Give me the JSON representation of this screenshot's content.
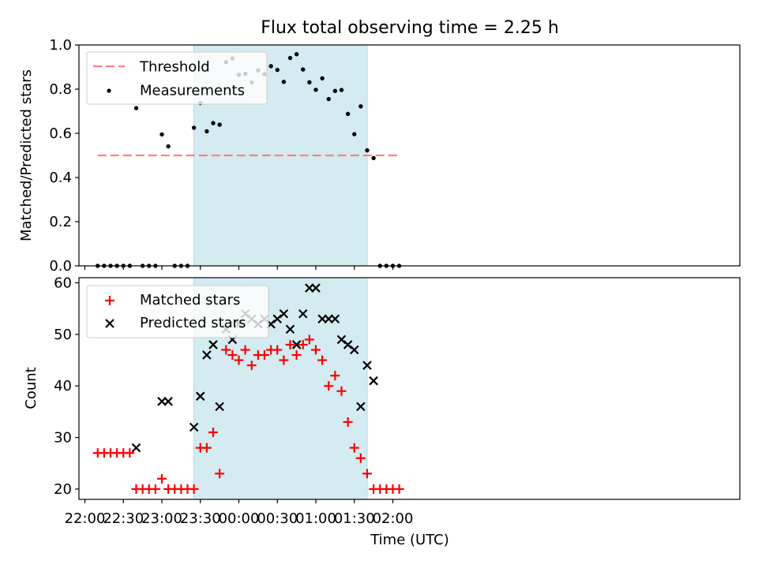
{
  "chart_data": [
    {
      "type": "scatter",
      "title": "Flux total observing time = 2.25 h",
      "xlabel": "",
      "ylabel": "Matched/Predicted stars",
      "ylim": [
        0,
        1.0
      ],
      "yticks": [
        "0.0",
        "0.2",
        "0.4",
        "0.6",
        "0.8",
        "1.0"
      ],
      "yticks_values": [
        0,
        0.2,
        0.4,
        0.6,
        0.8,
        1.0
      ],
      "shaded_interval": {
        "start": "23:25",
        "end": "01:40",
        "color": "#d4ebf1"
      },
      "threshold": {
        "name": "Threshold",
        "value": 0.5,
        "x_start": "22:10",
        "x_end": "02:05",
        "color": "#ff8080"
      },
      "series": [
        {
          "name": "Measurements",
          "color": "#000000",
          "x": [
            "22:10",
            "22:15",
            "22:20",
            "22:25",
            "22:30",
            "22:35",
            "22:40",
            "22:45",
            "22:50",
            "22:55",
            "23:00",
            "23:05",
            "23:10",
            "23:15",
            "23:20",
            "23:25",
            "23:30",
            "23:35",
            "23:40",
            "23:45",
            "23:50",
            "23:55",
            "00:00",
            "00:05",
            "00:10",
            "00:15",
            "00:20",
            "00:25",
            "00:30",
            "00:35",
            "00:40",
            "00:45",
            "00:50",
            "00:55",
            "01:00",
            "01:05",
            "01:10",
            "01:15",
            "01:20",
            "01:25",
            "01:30",
            "01:35",
            "01:40",
            "01:45",
            "01:50",
            "01:55",
            "02:00",
            "02:05"
          ],
          "values": [
            0,
            0,
            0,
            0,
            0,
            0,
            0.714,
            0,
            0,
            0,
            0.595,
            0.541,
            0,
            0,
            0,
            0.625,
            0.737,
            0.609,
            0.646,
            0.639,
            0.922,
            0.939,
            0.865,
            0.87,
            0.83,
            0.885,
            0.868,
            0.904,
            0.887,
            0.833,
            0.941,
            0.958,
            0.889,
            0.831,
            0.797,
            0.849,
            0.755,
            0.792,
            0.796,
            0.688,
            0.596,
            0.722,
            0.523,
            0.488,
            0,
            0,
            0,
            0
          ]
        }
      ],
      "legend": "top-left"
    },
    {
      "type": "scatter",
      "title": "",
      "xlabel": "Time (UTC)",
      "ylabel": "Count",
      "ylim": [
        18,
        61
      ],
      "yticks": [
        "20",
        "30",
        "40",
        "50",
        "60"
      ],
      "yticks_values": [
        20,
        30,
        40,
        50,
        60
      ],
      "xticks": [
        "22:00",
        "22:30",
        "23:00",
        "23:30",
        "00:00",
        "00:30",
        "01:00",
        "01:30",
        "02:00"
      ],
      "shaded_interval": {
        "start": "23:25",
        "end": "01:40",
        "color": "#d4ebf1"
      },
      "series": [
        {
          "name": "Matched stars",
          "marker": "plus",
          "color": "#ff0000",
          "x": [
            "22:10",
            "22:15",
            "22:20",
            "22:25",
            "22:30",
            "22:35",
            "22:40",
            "22:45",
            "22:50",
            "22:55",
            "23:00",
            "23:05",
            "23:10",
            "23:15",
            "23:20",
            "23:25",
            "23:30",
            "23:35",
            "23:40",
            "23:45",
            "23:50",
            "23:55",
            "00:00",
            "00:05",
            "00:10",
            "00:15",
            "00:20",
            "00:25",
            "00:30",
            "00:35",
            "00:40",
            "00:45",
            "00:50",
            "00:55",
            "01:00",
            "01:05",
            "01:10",
            "01:15",
            "01:20",
            "01:25",
            "01:30",
            "01:35",
            "01:40",
            "01:45",
            "01:50",
            "01:55",
            "02:00",
            "02:05"
          ],
          "values": [
            27,
            27,
            27,
            27,
            27,
            27,
            20,
            20,
            20,
            20,
            22,
            20,
            20,
            20,
            20,
            20,
            28,
            28,
            31,
            23,
            47,
            46,
            45,
            47,
            44,
            46,
            46,
            47,
            47,
            45,
            48,
            46,
            48,
            49,
            47,
            45,
            40,
            42,
            39,
            33,
            28,
            26,
            23,
            20,
            20,
            20,
            20,
            20
          ]
        },
        {
          "name": "Predicted stars",
          "marker": "x",
          "color": "#000000",
          "x": [
            "22:40",
            "23:00",
            "23:05",
            "23:25",
            "23:30",
            "23:35",
            "23:40",
            "23:45",
            "23:50",
            "23:55",
            "00:00",
            "00:05",
            "00:10",
            "00:15",
            "00:20",
            "00:25",
            "00:30",
            "00:35",
            "00:40",
            "00:45",
            "00:50",
            "00:55",
            "01:00",
            "01:05",
            "01:10",
            "01:15",
            "01:20",
            "01:25",
            "01:30",
            "01:35",
            "01:40",
            "01:45"
          ],
          "values": [
            28,
            37,
            37,
            32,
            38,
            46,
            48,
            36,
            51,
            49,
            52,
            54,
            53,
            52,
            53,
            52,
            53,
            54,
            51,
            48,
            54,
            59,
            59,
            53,
            53,
            53,
            49,
            48,
            47,
            36,
            44,
            41
          ]
        }
      ],
      "legend": "top-left"
    }
  ]
}
